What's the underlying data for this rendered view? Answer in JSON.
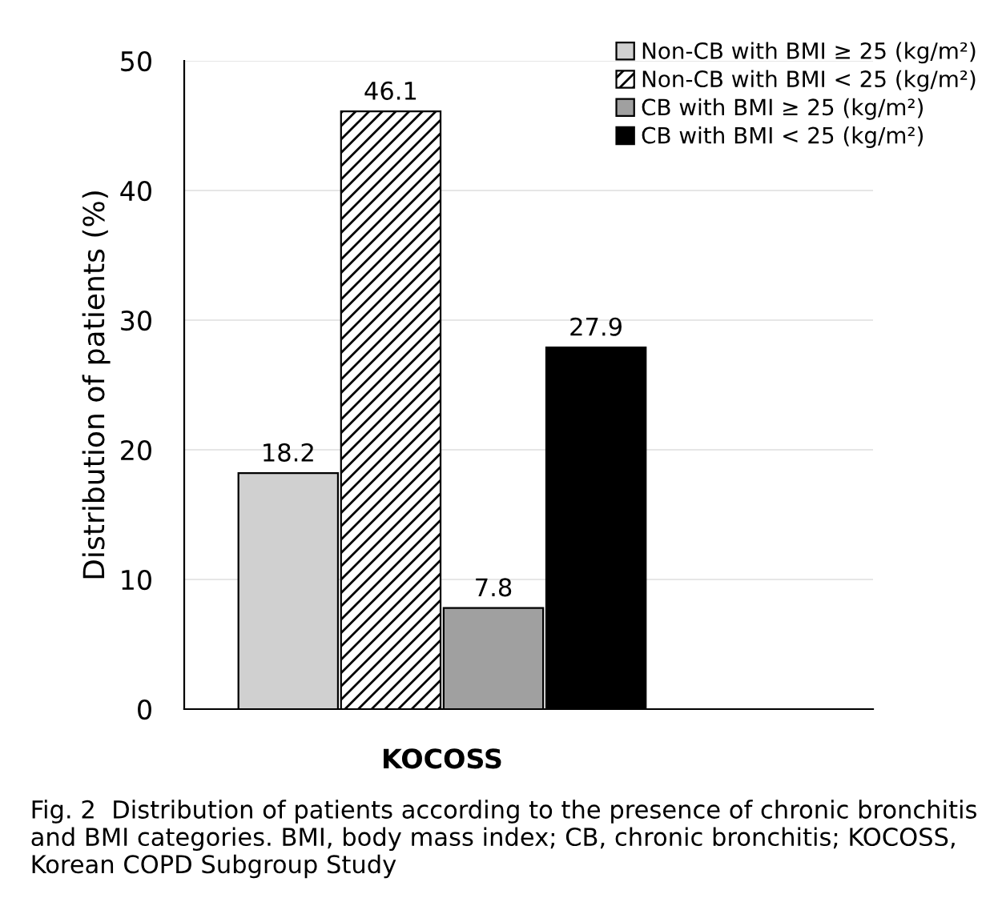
{
  "chart_data": {
    "type": "bar",
    "categories": [
      null
    ],
    "xlabel": "KOCOSS",
    "ylabel": "Distribution of patients (%)",
    "series": [
      {
        "name": "Non-CB with BMI ≥ 25 (kg/m²)",
        "color": "#d0d0d0",
        "values": [
          18.2
        ]
      },
      {
        "name": "Non-CB with BMI < 25 (kg/m²)",
        "color": "#000000",
        "values": [
          46.1
        ]
      },
      {
        "name": "CB with BMI ≥ 25 (kg/m²)",
        "color": "#a0a0a0",
        "values": [
          7.8
        ]
      },
      {
        "name": "CB with BMI < 25 (kg/m²)",
        "color": "#000000",
        "values": [
          27.9
        ]
      }
    ],
    "ylim": [
      0,
      50
    ],
    "yticks": [
      0,
      10,
      20,
      30,
      40,
      50
    ],
    "grid": "y",
    "legend": "top right",
    "data_labels": true,
    "annotations": [
      "Fig. 2  Distribution of patients according to the presence of chronic bronchitis and BMI categories. BMI, body mass index; CB, chronic bronchitis; KOCOSS, Korean COPD Subgroup Study"
    ]
  }
}
